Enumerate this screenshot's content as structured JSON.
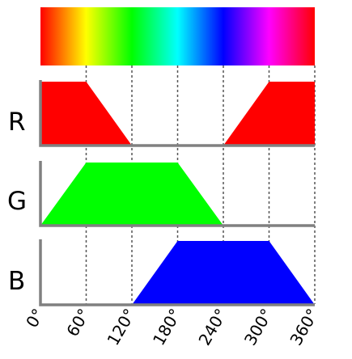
{
  "hue_bar": {
    "from": 0,
    "to": 360
  },
  "hue_axis": {
    "ticks": [
      {
        "value": 0,
        "label": "0°"
      },
      {
        "value": 60,
        "label": "60°"
      },
      {
        "value": 120,
        "label": "120°"
      },
      {
        "value": 180,
        "label": "180°"
      },
      {
        "value": 240,
        "label": "240°"
      },
      {
        "value": 300,
        "label": "300°"
      },
      {
        "value": 360,
        "label": "360°"
      }
    ]
  },
  "channels": [
    {
      "key": "r",
      "label": "R",
      "color": "#ff0000",
      "points": [
        [
          0,
          1
        ],
        [
          60,
          1
        ],
        [
          120,
          0
        ],
        [
          240,
          0
        ],
        [
          300,
          1
        ],
        [
          360,
          1
        ]
      ]
    },
    {
      "key": "g",
      "label": "G",
      "color": "#00ff00",
      "points": [
        [
          0,
          0
        ],
        [
          60,
          1
        ],
        [
          180,
          1
        ],
        [
          240,
          0
        ],
        [
          360,
          0
        ]
      ]
    },
    {
      "key": "b",
      "label": "B",
      "color": "#0000ff",
      "points": [
        [
          0,
          0
        ],
        [
          120,
          0
        ],
        [
          180,
          1
        ],
        [
          300,
          1
        ],
        [
          360,
          0
        ]
      ]
    }
  ]
}
